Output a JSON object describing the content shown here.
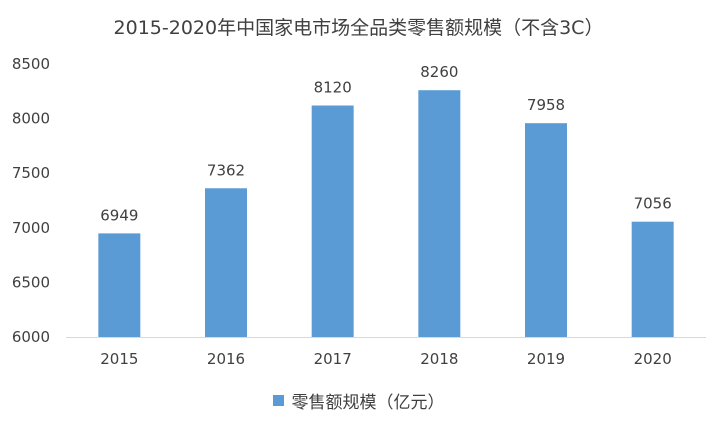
{
  "chart_data": {
    "type": "bar",
    "title": "2015-2020年中国家电市场全品类零售额规模（不含3C）",
    "categories": [
      "2015",
      "2016",
      "2017",
      "2018",
      "2019",
      "2020"
    ],
    "series": [
      {
        "name": "零售额规模（亿元）",
        "values": [
          6949,
          7362,
          8120,
          8260,
          7958,
          7056
        ],
        "color": "#5b9bd5"
      }
    ],
    "ylim": [
      6000,
      8500
    ],
    "yticks": [
      6000,
      6500,
      7000,
      7500,
      8000,
      8500
    ],
    "grid": false,
    "legend": "bottom",
    "xlabel": "",
    "ylabel": ""
  }
}
